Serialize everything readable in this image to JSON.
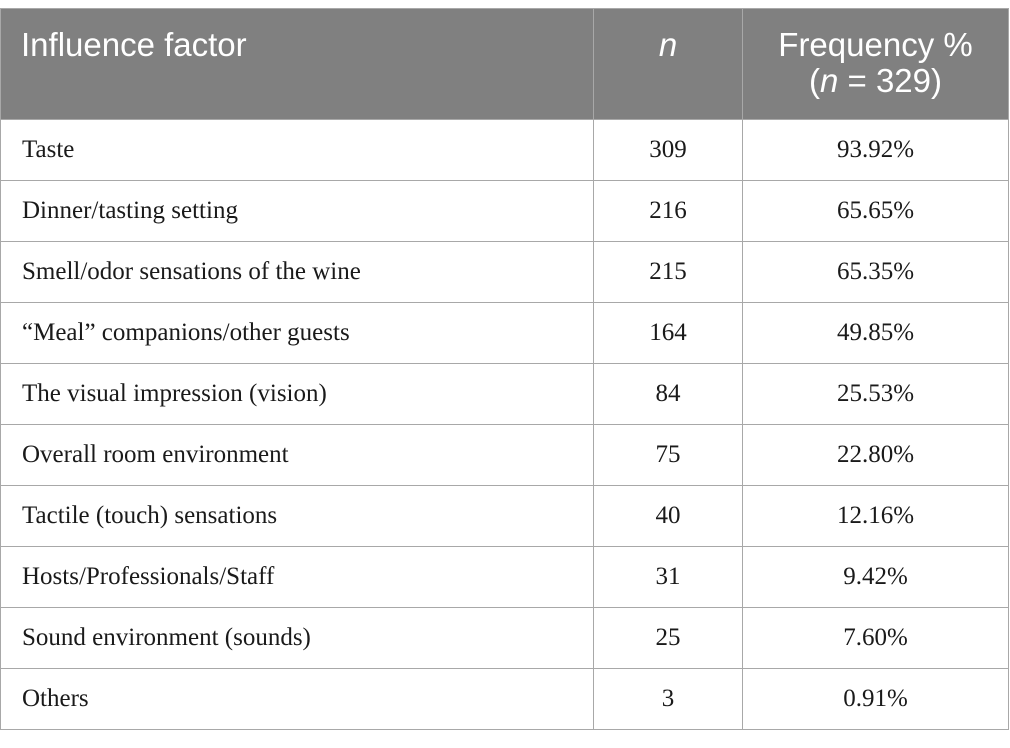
{
  "table": {
    "header": {
      "factor": "Influence factor",
      "n": "n",
      "freq_line1": "Frequency %",
      "freq_open": "(",
      "freq_n": "n",
      "freq_rest": " = 329)"
    },
    "rows": [
      {
        "factor": "Taste",
        "n": "309",
        "pct": "93.92%"
      },
      {
        "factor": "Dinner/tasting setting",
        "n": "216",
        "pct": "65.65%"
      },
      {
        "factor": "Smell/odor sensations of the wine",
        "n": "215",
        "pct": "65.35%"
      },
      {
        "factor": "“Meal” companions/other guests",
        "n": "164",
        "pct": "49.85%"
      },
      {
        "factor": "The visual impression (vision)",
        "n": "84",
        "pct": "25.53%"
      },
      {
        "factor": "Overall room environment",
        "n": "75",
        "pct": "22.80%"
      },
      {
        "factor": "Tactile (touch) sensations",
        "n": "40",
        "pct": "12.16%"
      },
      {
        "factor": "Hosts/Professionals/Staff",
        "n": "31",
        "pct": "9.42%"
      },
      {
        "factor": "Sound environment (sounds)",
        "n": "25",
        "pct": "7.60%"
      },
      {
        "factor": "Others",
        "n": "3",
        "pct": "0.91%"
      }
    ]
  },
  "colors": {
    "header_bg": "#808080",
    "header_text": "#ffffff",
    "border": "#a8a8a8"
  }
}
